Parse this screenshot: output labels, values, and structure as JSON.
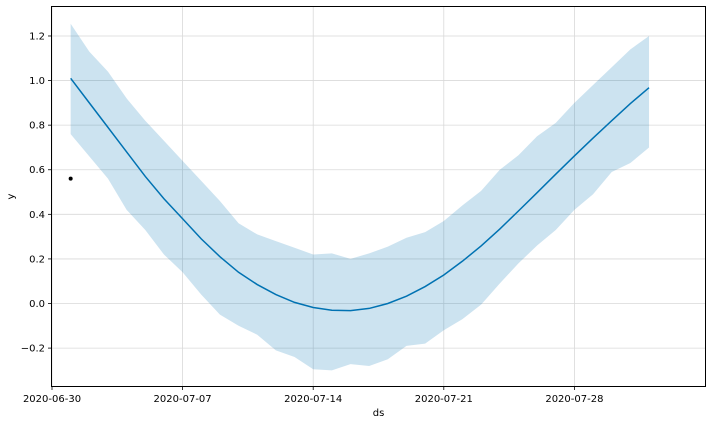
{
  "chart_data": {
    "type": "line",
    "title": "",
    "xlabel": "ds",
    "ylabel": "y",
    "x_axis_type": "date",
    "xlim": [
      "2020-06-30",
      "2020-08-04"
    ],
    "ylim": [
      -0.37,
      1.33
    ],
    "x_ticks": [
      "2020-06-30",
      "2020-07-07",
      "2020-07-14",
      "2020-07-21",
      "2020-07-28"
    ],
    "y_ticks": [
      -0.2,
      0.0,
      0.2,
      0.4,
      0.6,
      0.8,
      1.0,
      1.2
    ],
    "y_tick_labels": [
      "−0.2",
      "0.0",
      "0.2",
      "0.4",
      "0.6",
      "0.8",
      "1.0",
      "1.2"
    ],
    "grid": true,
    "legend": "none",
    "colors": {
      "forecast_line": "#0072B2",
      "interval_fill": "#0072B2",
      "observed_points": "#000000",
      "grid": "#d9d9d9"
    },
    "series": [
      {
        "kind": "observed",
        "points": [
          {
            "x": "2020-07-01",
            "y": 0.56
          }
        ]
      },
      {
        "kind": "forecast",
        "x": [
          "2020-07-01",
          "2020-07-02",
          "2020-07-03",
          "2020-07-04",
          "2020-07-05",
          "2020-07-06",
          "2020-07-07",
          "2020-07-08",
          "2020-07-09",
          "2020-07-10",
          "2020-07-11",
          "2020-07-12",
          "2020-07-13",
          "2020-07-14",
          "2020-07-15",
          "2020-07-16",
          "2020-07-17",
          "2020-07-18",
          "2020-07-19",
          "2020-07-20",
          "2020-07-21",
          "2020-07-22",
          "2020-07-23",
          "2020-07-24",
          "2020-07-25",
          "2020-07-26",
          "2020-07-27",
          "2020-07-28",
          "2020-07-29",
          "2020-07-30",
          "2020-07-31",
          "2020-08-01"
        ],
        "yhat": [
          1.01,
          0.9,
          0.79,
          0.68,
          0.57,
          0.47,
          0.38,
          0.29,
          0.21,
          0.14,
          0.085,
          0.04,
          0.005,
          -0.018,
          -0.03,
          -0.032,
          -0.022,
          0.0,
          0.033,
          0.076,
          0.128,
          0.19,
          0.258,
          0.334,
          0.415,
          0.497,
          0.58,
          0.662,
          0.742,
          0.82,
          0.897,
          0.968
        ],
        "yhat_upper": [
          1.255,
          1.13,
          1.04,
          0.92,
          0.82,
          0.73,
          0.64,
          0.55,
          0.46,
          0.36,
          0.31,
          0.28,
          0.25,
          0.22,
          0.225,
          0.2,
          0.225,
          0.255,
          0.295,
          0.32,
          0.37,
          0.44,
          0.505,
          0.6,
          0.665,
          0.75,
          0.81,
          0.9,
          0.98,
          1.06,
          1.14,
          1.2
        ],
        "yhat_lower": [
          0.76,
          0.66,
          0.56,
          0.42,
          0.33,
          0.22,
          0.14,
          0.04,
          -0.05,
          -0.1,
          -0.14,
          -0.21,
          -0.24,
          -0.295,
          -0.3,
          -0.272,
          -0.28,
          -0.25,
          -0.19,
          -0.18,
          -0.12,
          -0.07,
          -0.005,
          0.09,
          0.18,
          0.26,
          0.33,
          0.42,
          0.49,
          0.59,
          0.63,
          0.7
        ]
      }
    ]
  }
}
